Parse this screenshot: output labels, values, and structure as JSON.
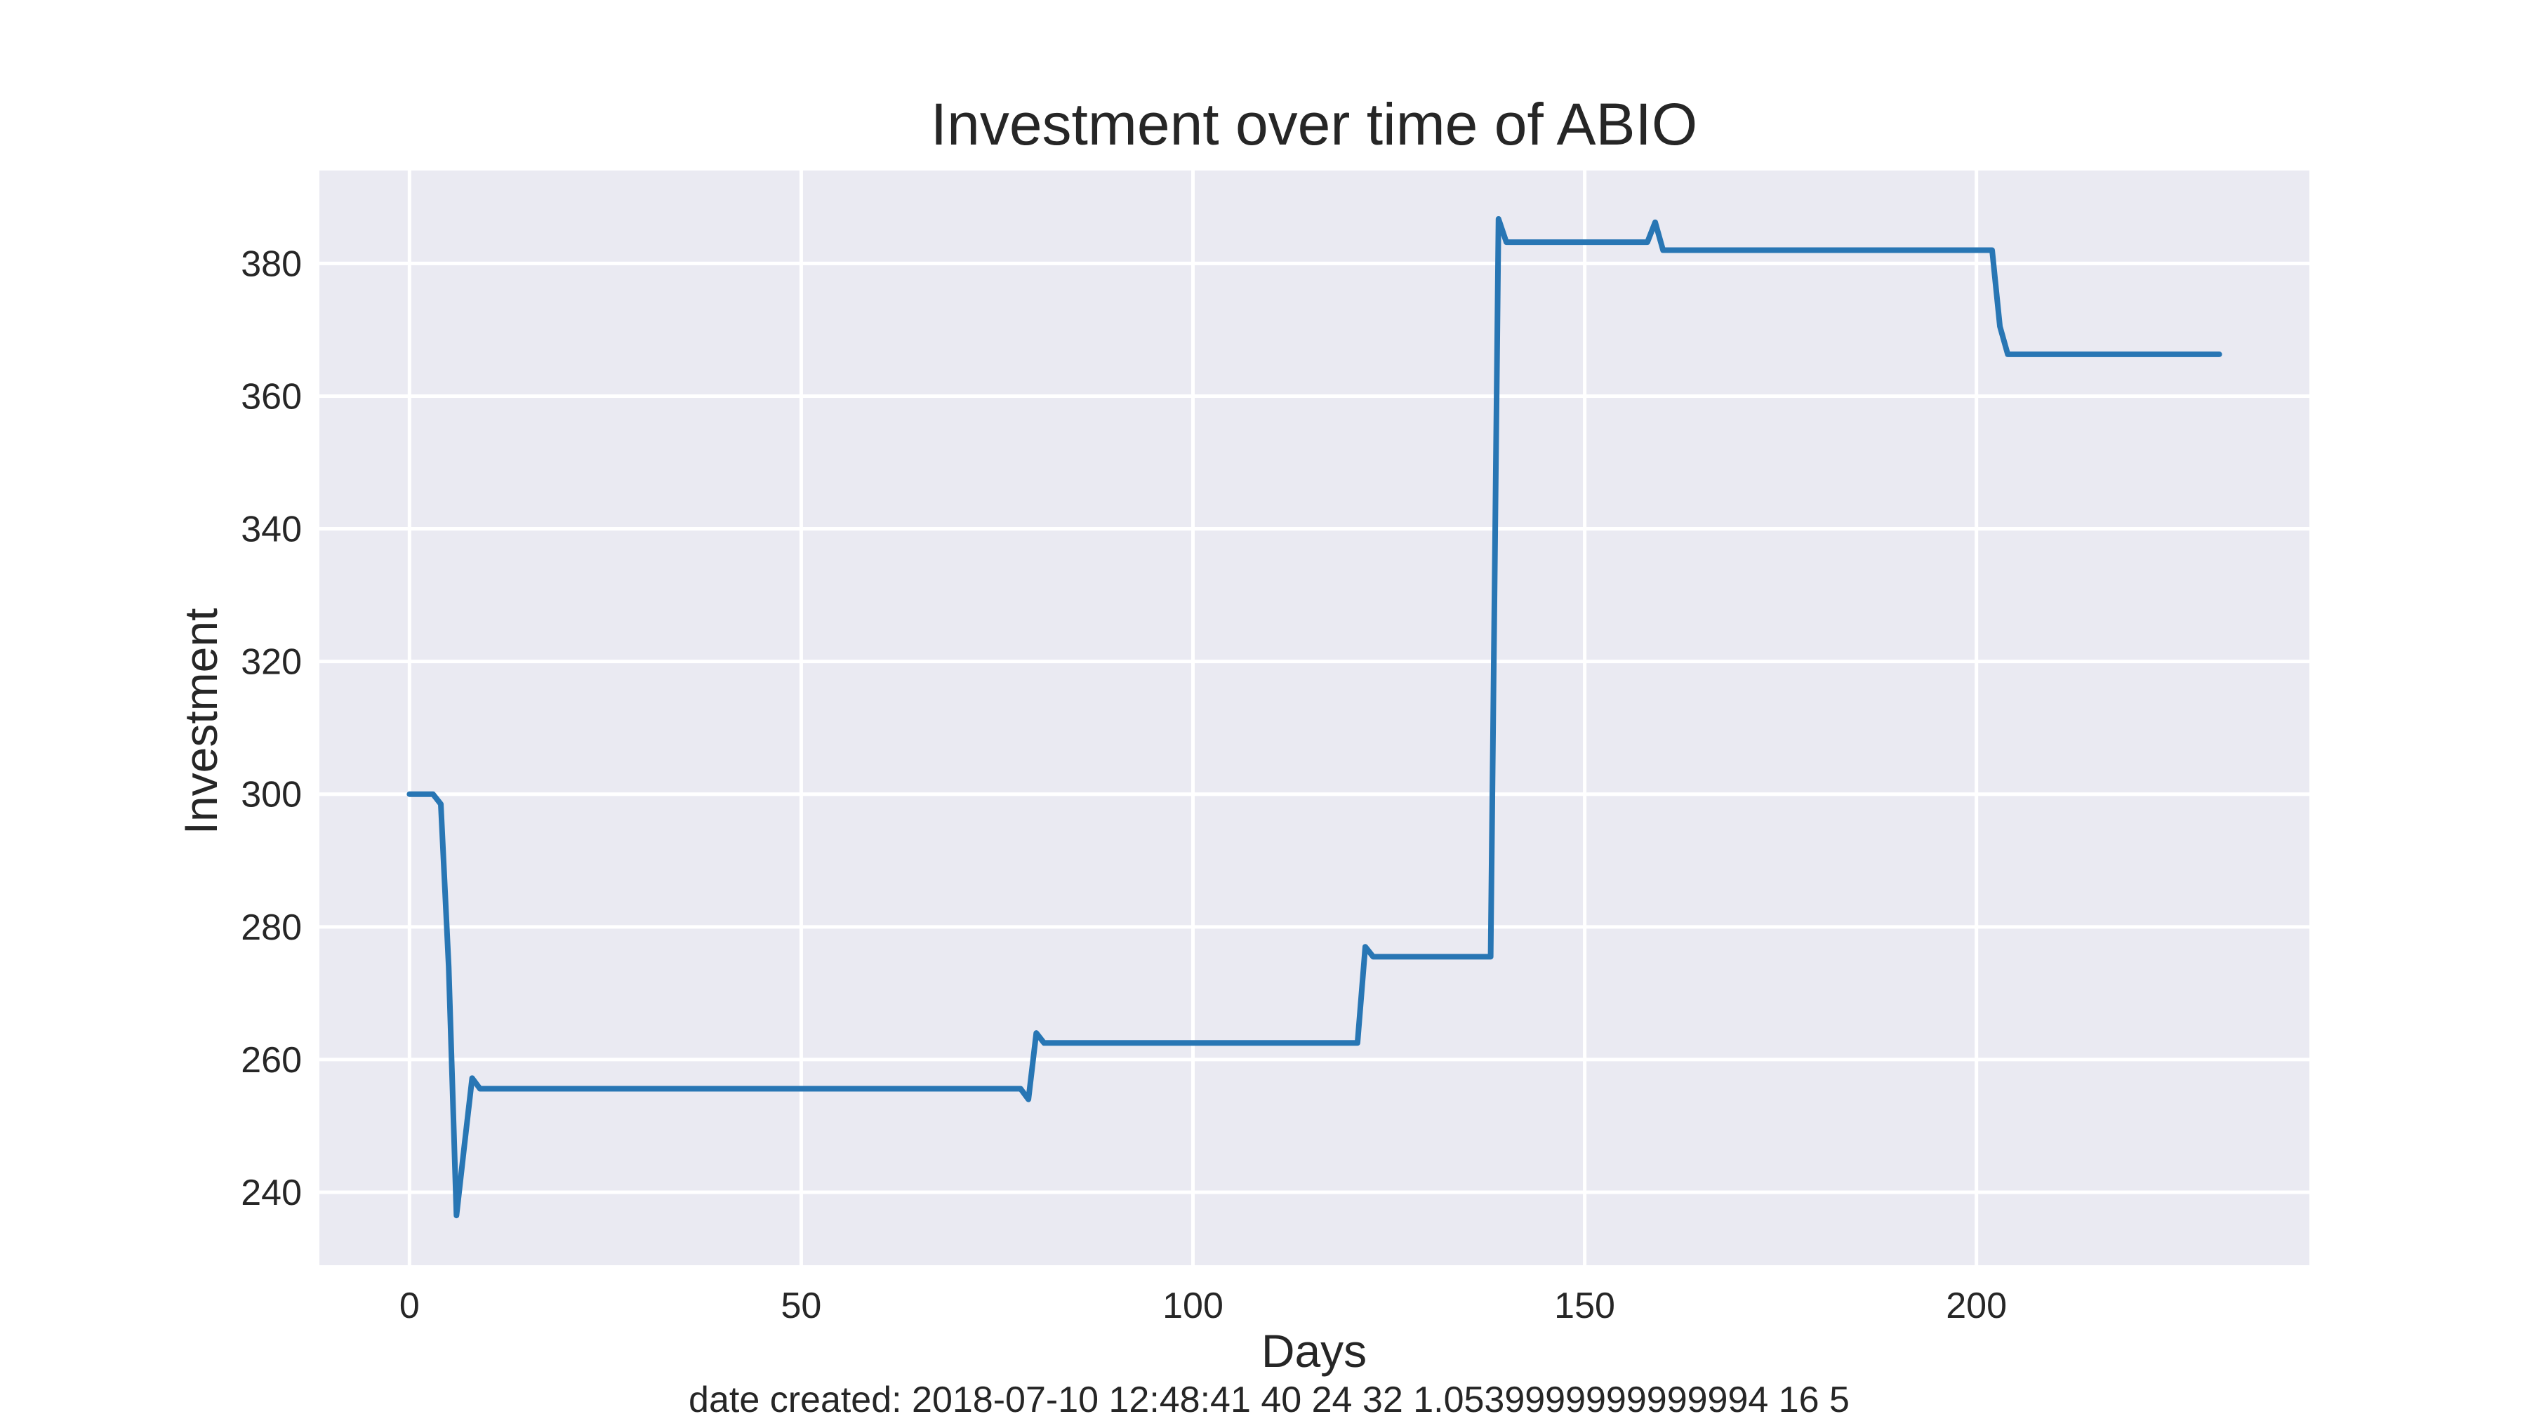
{
  "chart_data": {
    "type": "line",
    "title": "Investment over time of ABIO",
    "xlabel": "Days",
    "ylabel": "Investment",
    "footer": "date created: 2018-07-10 12:48:41 40 24 32 1.0539999999999994 16 5",
    "xlim": [
      -11.5,
      242.5
    ],
    "ylim": [
      229,
      394
    ],
    "xticks": [
      0,
      50,
      100,
      150,
      200
    ],
    "yticks": [
      240,
      260,
      280,
      300,
      320,
      340,
      360,
      380
    ],
    "grid": true,
    "line_color": "#2876b4",
    "background_color": "#eaeaf2",
    "grid_color": "#ffffff",
    "series": [
      {
        "x": [
          0,
          1,
          2,
          3,
          4,
          5,
          6,
          7,
          8,
          9,
          10,
          78,
          79,
          80,
          81,
          121,
          122,
          123,
          138,
          139,
          140,
          158,
          159,
          160,
          202,
          203,
          204,
          231
        ],
        "values": [
          300,
          300,
          300,
          300,
          298.5,
          274,
          236.5,
          247,
          257.2,
          255.6,
          255.6,
          255.6,
          254,
          264,
          262.5,
          262.5,
          277,
          275.5,
          275.5,
          386.7,
          383.2,
          383.2,
          386.2,
          382,
          382,
          370.5,
          366.3,
          366.3
        ]
      }
    ]
  }
}
